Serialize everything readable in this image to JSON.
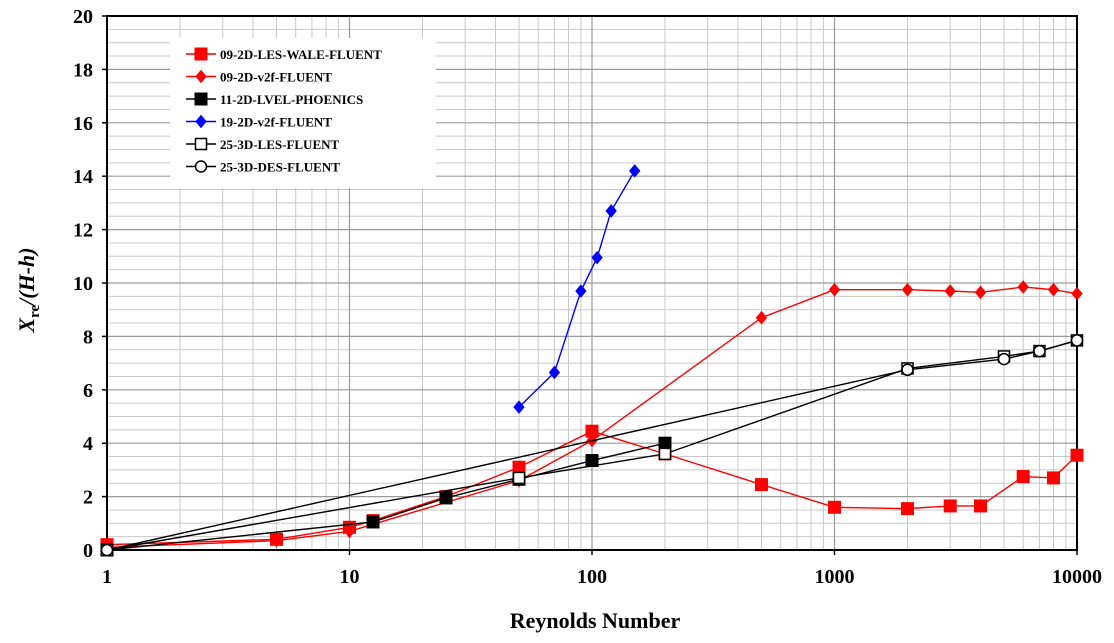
{
  "chart_data": {
    "type": "line",
    "title": "",
    "xlabel": "Reynolds Number",
    "ylabel": {
      "main": "X",
      "sub": "re",
      "rest": "/(H-h)"
    },
    "x_scale": "log",
    "xlim": [
      1,
      10000
    ],
    "ylim": [
      0,
      20
    ],
    "x_ticks": [
      1,
      10,
      100,
      1000,
      10000
    ],
    "x_tick_labels": [
      "1",
      "10",
      "100",
      "1000",
      "10000"
    ],
    "y_ticks": [
      0,
      2,
      4,
      6,
      8,
      10,
      12,
      14,
      16,
      18,
      20
    ],
    "y_tick_labels": [
      "0",
      "2",
      "4",
      "6",
      "8",
      "10",
      "12",
      "14",
      "16",
      "18",
      "20"
    ],
    "grid": true,
    "legend_position": "top-left",
    "series": [
      {
        "name": "09-2D-LES-WALE-FLUENT",
        "color": "#ff0000",
        "marker": "square-filled",
        "x": [
          1,
          5,
          10,
          12.5,
          25,
          50,
          100,
          200,
          500,
          1000,
          2000,
          3000,
          4000,
          6000,
          8000,
          10000
        ],
        "y": [
          0.2,
          0.4,
          0.85,
          1.1,
          2.0,
          3.1,
          4.45,
          3.6,
          2.45,
          1.6,
          1.55,
          1.65,
          1.65,
          2.75,
          2.7,
          3.55
        ]
      },
      {
        "name": "09-2D-v2f-FLUENT",
        "color": "#ff0000",
        "marker": "diamond-filled",
        "x": [
          1,
          5,
          10,
          50,
          100,
          500,
          1000,
          2000,
          3000,
          4000,
          6000,
          8000,
          10000
        ],
        "y": [
          0.1,
          0.35,
          0.7,
          2.6,
          4.1,
          8.7,
          9.75,
          9.75,
          9.7,
          9.65,
          9.85,
          9.75,
          9.6
        ]
      },
      {
        "name": "11-2D-LVEL-PHOENICS",
        "color": "#000000",
        "marker": "square-filled",
        "x": [
          1,
          12.5,
          25,
          50,
          100,
          200
        ],
        "y": [
          0.0,
          1.05,
          1.95,
          2.65,
          3.35,
          4.0
        ]
      },
      {
        "name": "19-2D-v2f-FLUENT",
        "color": "#0000ff",
        "marker": "diamond-filled",
        "x": [
          50,
          70,
          90,
          105,
          120,
          150
        ],
        "y": [
          5.35,
          6.65,
          9.7,
          10.95,
          12.7,
          14.2
        ]
      },
      {
        "name": "25-3D-LES-FLUENT",
        "color": "#000000",
        "marker": "square-open",
        "x": [
          1,
          50,
          200,
          2000,
          5000,
          7000,
          10000
        ],
        "y": [
          0.0,
          2.7,
          3.6,
          6.8,
          7.25,
          7.45,
          7.85
        ]
      },
      {
        "name": "25-3D-DES-FLUENT",
        "color": "#000000",
        "marker": "circle-open",
        "x": [
          1,
          2000,
          5000,
          7000,
          10000
        ],
        "y": [
          0.0,
          6.75,
          7.15,
          7.45,
          7.85
        ]
      }
    ]
  }
}
